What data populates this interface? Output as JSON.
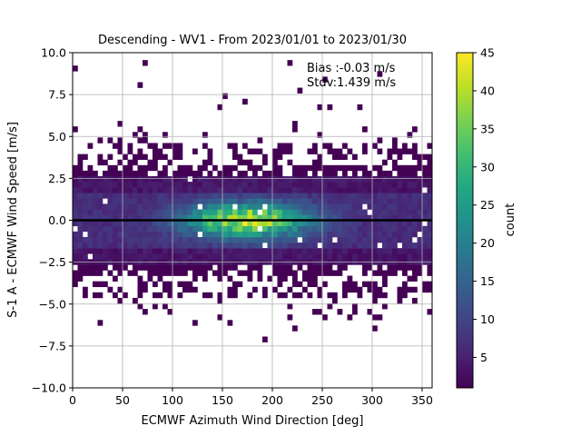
{
  "chart_data": {
    "type": "heatmap",
    "title": "Descending - WV1 - From 2023/01/01 to 2023/01/30",
    "xlabel": "ECMWF Azimuth Wind Direction [deg]",
    "ylabel": "S-1 A - ECMWF Wind Speed [m/s]",
    "xlim": [
      0,
      360
    ],
    "ylim": [
      -10,
      10
    ],
    "x_ticks": [
      0,
      50,
      100,
      150,
      200,
      250,
      300,
      350
    ],
    "y_ticks": [
      -10.0,
      -7.5,
      -5.0,
      -2.5,
      0.0,
      2.5,
      5.0,
      7.5,
      10.0
    ],
    "x_tick_labels": [
      "0",
      "50",
      "100",
      "150",
      "200",
      "250",
      "300",
      "350"
    ],
    "y_tick_labels": [
      "−10.0",
      "−7.5",
      "−5.0",
      "−2.5",
      "0.0",
      "2.5",
      "5.0",
      "7.5",
      "10.0"
    ],
    "grid": true,
    "zero_line_y": 0,
    "colorbar": {
      "label": "count",
      "range": [
        1,
        45
      ],
      "ticks": [
        5,
        10,
        15,
        20,
        25,
        30,
        35,
        40,
        45
      ],
      "tick_labels": [
        "5",
        "10",
        "15",
        "20",
        "25",
        "30",
        "35",
        "40",
        "45"
      ],
      "colormap": "viridis"
    },
    "annotation_lines": [
      "Bias :-0.03 m/s",
      "Stdv:1.439 m/s"
    ],
    "bin_width_deg": 5,
    "bin_height_ms": 0.33,
    "density_peak": {
      "x_center_deg": 175,
      "x_spread_deg": 60,
      "y_center_ms": 0.0,
      "y_spread_ms": 0.7,
      "max_count": 44
    }
  }
}
